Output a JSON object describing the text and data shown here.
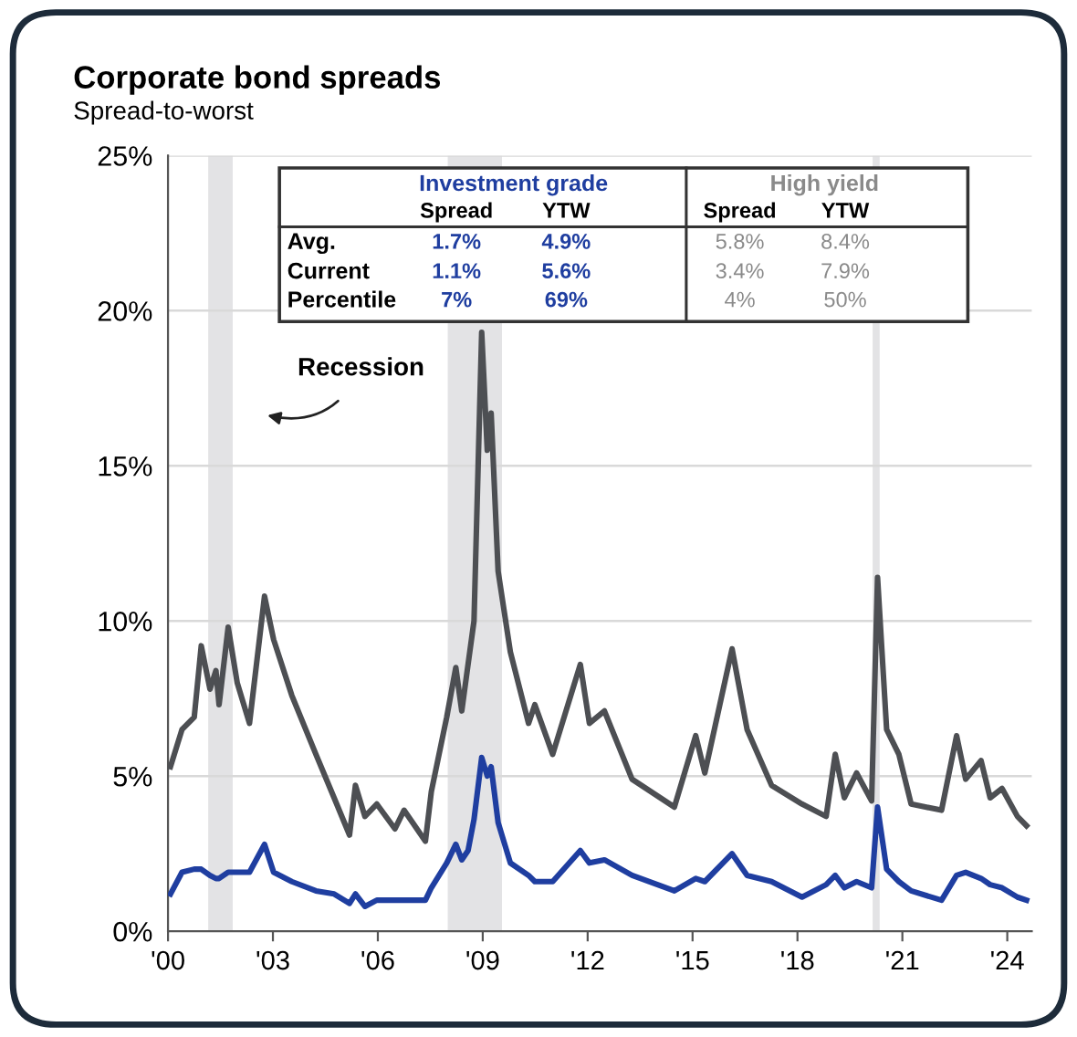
{
  "chart_data": {
    "type": "line",
    "title": "Corporate bond spreads",
    "subtitle": "Spread-to-worst",
    "x": [
      2000.07,
      2000.4,
      2000.75,
      2000.95,
      2001.2,
      2001.37,
      2001.46,
      2001.72,
      2001.98,
      2002.33,
      2002.76,
      2003.02,
      2003.54,
      2004.23,
      2004.75,
      2005.19,
      2005.36,
      2005.63,
      2005.97,
      2006.49,
      2006.75,
      2007.36,
      2007.53,
      2007.97,
      2008.23,
      2008.4,
      2008.58,
      2008.75,
      2008.97,
      2009.13,
      2009.24,
      2009.44,
      2009.79,
      2010.31,
      2010.49,
      2011.0,
      2011.79,
      2012.05,
      2012.48,
      2013.27,
      2014.48,
      2015.09,
      2015.35,
      2016.13,
      2016.56,
      2017.26,
      2018.13,
      2018.82,
      2019.08,
      2019.34,
      2019.69,
      2020.12,
      2020.29,
      2020.55,
      2020.9,
      2021.25,
      2022.12,
      2022.55,
      2022.81,
      2023.25,
      2023.51,
      2023.85,
      2024.29,
      2024.55
    ],
    "series": [
      {
        "color": "#4d4f53",
        "values": [
          5.3,
          6.5,
          6.9,
          9.2,
          7.8,
          8.4,
          7.3,
          9.8,
          8.0,
          6.7,
          10.8,
          9.4,
          7.6,
          5.7,
          4.3,
          3.1,
          4.7,
          3.7,
          4.1,
          3.3,
          3.9,
          2.9,
          4.5,
          6.9,
          8.5,
          7.1,
          8.6,
          10.0,
          19.3,
          15.5,
          16.7,
          11.6,
          9.0,
          6.7,
          7.3,
          5.7,
          8.6,
          6.7,
          7.1,
          4.9,
          4.0,
          6.3,
          5.1,
          9.1,
          6.5,
          4.7,
          4.1,
          3.7,
          5.7,
          4.3,
          5.1,
          4.2,
          11.4,
          6.5,
          5.7,
          4.1,
          3.9,
          6.3,
          4.9,
          5.5,
          4.3,
          4.6,
          3.7,
          3.4
        ]
      },
      {
        "color": "#1f3ea0",
        "values": [
          1.2,
          1.9,
          2.0,
          2.0,
          1.8,
          1.7,
          1.7,
          1.9,
          1.9,
          1.9,
          2.8,
          1.9,
          1.6,
          1.3,
          1.2,
          0.9,
          1.2,
          0.8,
          1.0,
          1.0,
          1.0,
          1.0,
          1.4,
          2.2,
          2.8,
          2.3,
          2.6,
          3.6,
          5.6,
          5.0,
          5.3,
          3.5,
          2.2,
          1.8,
          1.6,
          1.6,
          2.6,
          2.2,
          2.3,
          1.8,
          1.3,
          1.7,
          1.6,
          2.5,
          1.8,
          1.6,
          1.1,
          1.5,
          1.8,
          1.4,
          1.6,
          1.4,
          4.0,
          2.0,
          1.6,
          1.3,
          1.0,
          1.8,
          1.9,
          1.7,
          1.5,
          1.4,
          1.1,
          1.0
        ]
      }
    ],
    "xlim": [
      2000,
      2024.7
    ],
    "xticks": [
      {
        "value": 2000,
        "label": "'00"
      },
      {
        "value": 2003,
        "label": "'03"
      },
      {
        "value": 2006,
        "label": "'06"
      },
      {
        "value": 2009,
        "label": "'09"
      },
      {
        "value": 2012,
        "label": "'12"
      },
      {
        "value": 2015,
        "label": "'15"
      },
      {
        "value": 2018,
        "label": "'18"
      },
      {
        "value": 2021,
        "label": "'21"
      },
      {
        "value": 2024,
        "label": "'24"
      }
    ],
    "ylim": [
      0,
      25
    ],
    "yticks": [
      {
        "value": 0,
        "label": "0%"
      },
      {
        "value": 5,
        "label": "5%"
      },
      {
        "value": 10,
        "label": "10%"
      },
      {
        "value": 15,
        "label": "15%"
      },
      {
        "value": 20,
        "label": "20%"
      },
      {
        "value": 25,
        "label": "25%"
      }
    ],
    "grid": "y",
    "bands": [
      {
        "axis": "x",
        "from": 2001.15,
        "to": 2001.85,
        "color": "#e3e3e5"
      },
      {
        "axis": "x",
        "from": 2008.0,
        "to": 2009.55,
        "color": "#e3e3e5"
      },
      {
        "axis": "x",
        "from": 2020.15,
        "to": 2020.35,
        "color": "#e3e3e5"
      }
    ],
    "annotations": [
      "Recession",
      "Investment grade",
      "High yield",
      "Spread",
      "YTW",
      "Spread",
      "YTW",
      "Avg.",
      "1.7%",
      "4.9%",
      "5.8%",
      "8.4%",
      "Current",
      "1.1%",
      "5.6%",
      "3.4%",
      "7.9%",
      "Percentile",
      "7%",
      "69%",
      "4%",
      "50%"
    ]
  }
}
